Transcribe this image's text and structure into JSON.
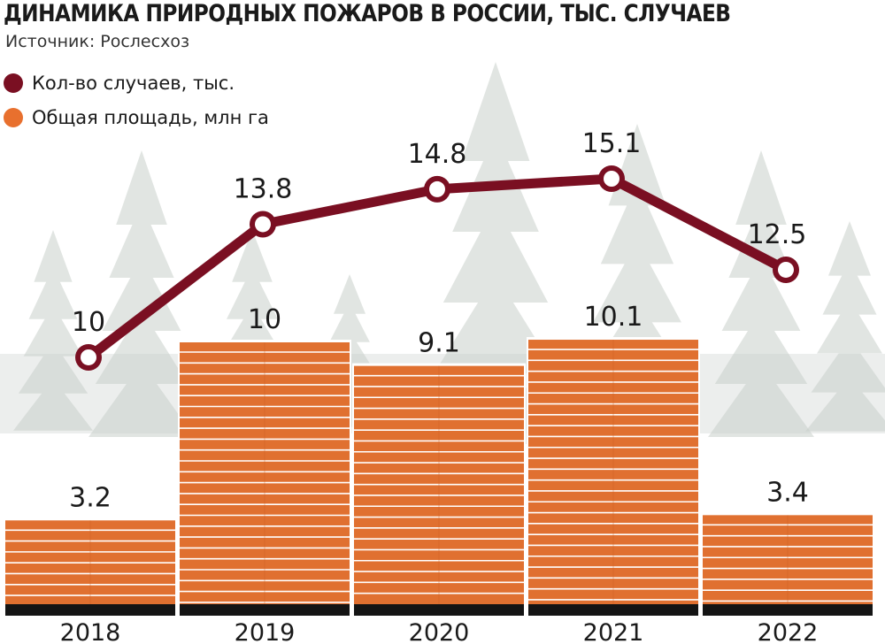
{
  "title": "ДИНАМИКА ПРИРОДНЫХ ПОЖАРОВ В РОССИИ, ТЫС. СЛУЧАЕВ",
  "source": "Источник: Рослесхоз",
  "legend": [
    {
      "label": "Кол-во случаев, тыс.",
      "color": "#7a0f22"
    },
    {
      "label": "Общая площадь, млн га",
      "color": "#e8702e"
    }
  ],
  "colors": {
    "line": "#7a0f22",
    "bar": "#e07030",
    "bar_stripe": "#ffffff",
    "baseline": "#141414",
    "trees": "#c9cfcb"
  },
  "chart_data": {
    "type": "bar",
    "categories": [
      "2018",
      "2019",
      "2020",
      "2021",
      "2022"
    ],
    "series": [
      {
        "name": "Кол-во случаев, тыс.",
        "type": "line",
        "values": [
          10,
          13.8,
          14.8,
          15.1,
          12.5
        ],
        "labels": [
          "10",
          "13.8",
          "14.8",
          "15.1",
          "12.5"
        ]
      },
      {
        "name": "Общая площадь, млн га",
        "type": "bar",
        "values": [
          3.2,
          10,
          9.1,
          10.1,
          3.4
        ],
        "labels": [
          "3.2",
          "10",
          "9.1",
          "10.1",
          "3.4"
        ]
      }
    ],
    "grid": false,
    "legend_position": "top-left"
  }
}
